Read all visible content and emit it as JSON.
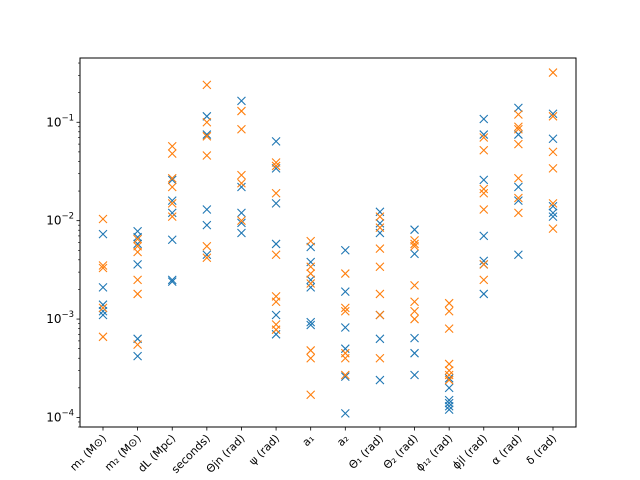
{
  "chart_data": {
    "type": "scatter",
    "marker": "x",
    "y_scale": "log",
    "ylim": [
      8e-05,
      0.45
    ],
    "y_ticks": [
      {
        "value": 0.0001,
        "base": "10",
        "exp": "−4"
      },
      {
        "value": 0.001,
        "base": "10",
        "exp": "−3"
      },
      {
        "value": 0.01,
        "base": "10",
        "exp": "−2"
      },
      {
        "value": 0.1,
        "base": "10",
        "exp": "−1"
      }
    ],
    "grid": false,
    "legend": "none",
    "categories": [
      "m₁ (M⊙)",
      "m₂ (M⊙)",
      "dL (Mpc)",
      "seconds)",
      "Θjn (rad)",
      "ψ (rad)",
      "a₁",
      "a₂",
      "Θ₁ (rad)",
      "Θ₂ (rad)",
      "ϕ₁₂ (rad)",
      "ϕjl (rad)",
      "α (rad)",
      "δ (rad)"
    ],
    "series": [
      {
        "color": "#1f77b4",
        "values": [
          [
            0.0073,
            0.0021,
            0.0014,
            0.0012,
            0.0011
          ],
          [
            0.0078,
            0.0068,
            0.0058,
            0.0036,
            0.00063,
            0.00042
          ],
          [
            0.026,
            0.016,
            0.012,
            0.0064,
            0.0025,
            0.0024
          ],
          [
            0.115,
            0.075,
            0.013,
            0.009,
            0.0045
          ],
          [
            0.165,
            0.022,
            0.012,
            0.0095,
            0.0075
          ],
          [
            0.064,
            0.034,
            0.015,
            0.0058,
            0.0011,
            0.0007
          ],
          [
            0.0054,
            0.0038,
            0.0025,
            0.0021,
            0.00093,
            0.00087
          ],
          [
            0.005,
            0.0019,
            0.00082,
            0.0005,
            0.00026,
            0.00011
          ],
          [
            0.0123,
            0.0094,
            0.0075,
            0.0011,
            0.00063,
            0.00024
          ],
          [
            0.0081,
            0.0046,
            0.00064,
            0.00045,
            0.00027
          ],
          [
            0.00025,
            0.0002,
            0.00015,
            0.00014,
            0.00013,
            0.00012
          ],
          [
            0.108,
            0.075,
            0.026,
            0.007,
            0.0039,
            0.0036,
            0.0018
          ],
          [
            0.14,
            0.075,
            0.022,
            0.016,
            0.0045
          ],
          [
            0.122,
            0.068,
            0.014,
            0.012,
            0.011
          ]
        ]
      },
      {
        "color": "#ff7f0e",
        "values": [
          [
            0.0104,
            0.0035,
            0.0033,
            0.0013,
            0.00066
          ],
          [
            0.0065,
            0.0055,
            0.0048,
            0.0025,
            0.0018,
            0.00055
          ],
          [
            0.057,
            0.048,
            0.027,
            0.022,
            0.015,
            0.011
          ],
          [
            0.24,
            0.1,
            0.072,
            0.046,
            0.0055,
            0.0042
          ],
          [
            0.13,
            0.085,
            0.029,
            0.024,
            0.01
          ],
          [
            0.039,
            0.036,
            0.019,
            0.0045,
            0.0017,
            0.0015,
            0.00088,
            0.00078
          ],
          [
            0.0062,
            0.0034,
            0.0029,
            0.0023,
            0.00048,
            0.0004,
            0.00017
          ],
          [
            0.0029,
            0.0013,
            0.0012,
            0.00045,
            0.0004,
            0.00027
          ],
          [
            0.011,
            0.0085,
            0.0052,
            0.0034,
            0.0018,
            0.0011,
            0.0004
          ],
          [
            0.0063,
            0.0058,
            0.0055,
            0.0022,
            0.0015,
            0.0012,
            0.001
          ],
          [
            0.00145,
            0.0012,
            0.0008,
            0.00035,
            0.0003,
            0.00027,
            0.00024
          ],
          [
            0.07,
            0.052,
            0.021,
            0.019,
            0.013,
            0.0036,
            0.0025
          ],
          [
            0.12,
            0.09,
            0.085,
            0.06,
            0.027,
            0.017,
            0.012
          ],
          [
            0.32,
            0.115,
            0.05,
            0.034,
            0.015,
            0.0083
          ]
        ]
      }
    ]
  }
}
